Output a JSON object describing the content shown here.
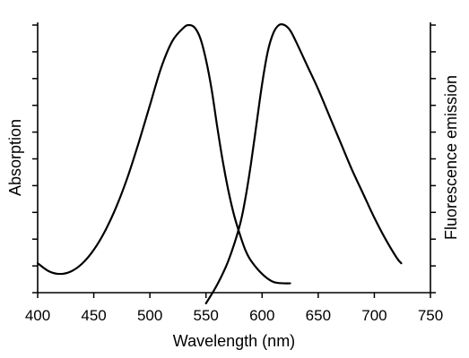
{
  "chart_data": {
    "type": "line",
    "title": "",
    "xlabel": "Wavelength (nm)",
    "ylabel_left": "Absorption",
    "ylabel_right": "Fluorescence emission",
    "xlim": [
      400,
      750
    ],
    "ylim": [
      0,
      1
    ],
    "xticks": [
      400,
      450,
      500,
      550,
      600,
      650,
      700,
      750
    ],
    "xtick_labels": [
      "400",
      "450",
      "500",
      "550",
      "600",
      "650",
      "700",
      "750"
    ],
    "y_tick_count": 11,
    "grid": false,
    "legend": "none",
    "line_color": "#000000",
    "series": [
      {
        "x": [
          400,
          410,
          420,
          430,
          440,
          450,
          460,
          470,
          480,
          490,
          500,
          510,
          520,
          530,
          535,
          540,
          545,
          550,
          555,
          560,
          565,
          570,
          575,
          580,
          585,
          590,
          600,
          610,
          620,
          625
        ],
        "y": [
          0.11,
          0.08,
          0.07,
          0.08,
          0.11,
          0.16,
          0.23,
          0.32,
          0.43,
          0.56,
          0.7,
          0.84,
          0.94,
          0.99,
          1.0,
          0.99,
          0.95,
          0.87,
          0.76,
          0.62,
          0.49,
          0.38,
          0.29,
          0.22,
          0.16,
          0.12,
          0.07,
          0.04,
          0.035,
          0.035
        ]
      },
      {
        "x": [
          550,
          560,
          570,
          580,
          585,
          590,
          595,
          600,
          605,
          610,
          615,
          620,
          625,
          630,
          640,
          650,
          660,
          670,
          680,
          690,
          700,
          710,
          720,
          724
        ],
        "y": [
          -0.04,
          0.03,
          0.12,
          0.25,
          0.35,
          0.48,
          0.63,
          0.78,
          0.9,
          0.97,
          1.0,
          1.0,
          0.98,
          0.94,
          0.85,
          0.76,
          0.66,
          0.56,
          0.46,
          0.37,
          0.28,
          0.2,
          0.13,
          0.11
        ]
      }
    ]
  }
}
